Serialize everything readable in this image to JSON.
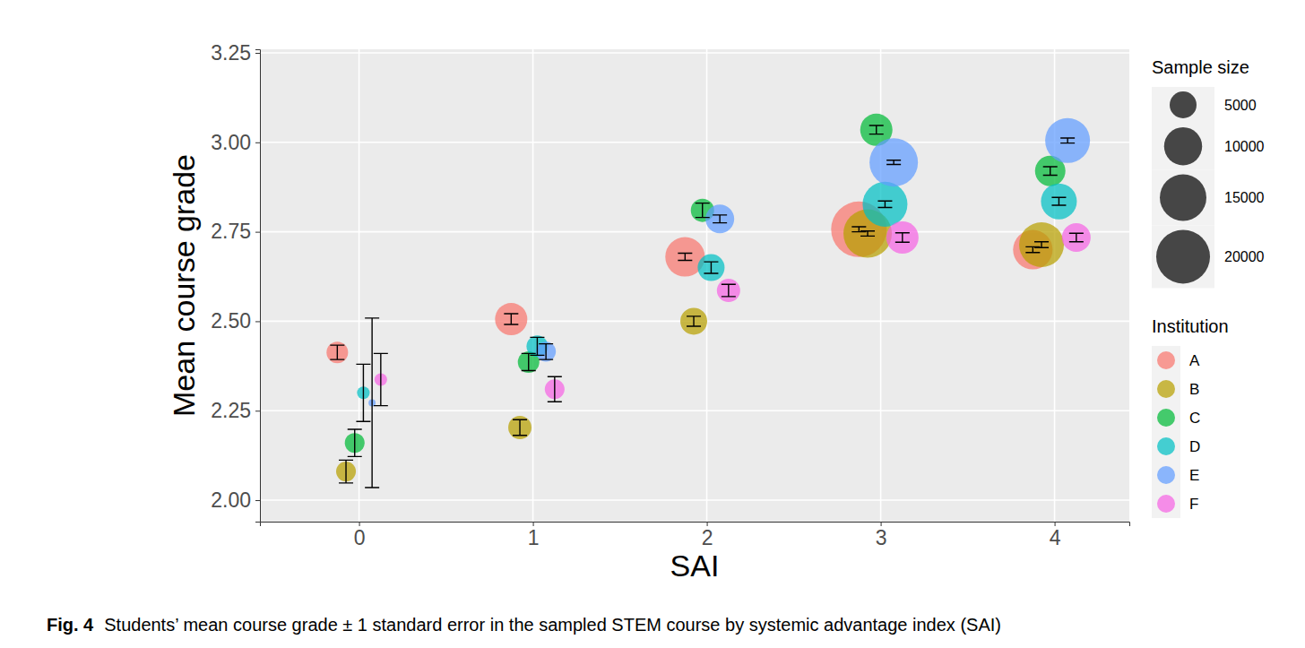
{
  "chart_data": {
    "type": "scatter",
    "marker": "bubble",
    "caption_label": "Fig. 4",
    "caption": "Students’ mean course grade ± 1 standard error in the sampled STEM course by systemic advantage index (SAI)",
    "x_label": "SAI",
    "y_label": "Mean course grade",
    "x": [
      0,
      1,
      2,
      3,
      4
    ],
    "xlim": [
      -0.57,
      4.43
    ],
    "xticks": [
      0,
      1,
      2,
      3,
      4
    ],
    "ylim": [
      1.94,
      3.26
    ],
    "yticks": [
      2.0,
      2.25,
      2.5,
      2.75,
      3.0,
      3.25
    ],
    "ytick_labels": [
      "2.00",
      "2.25",
      "2.50",
      "2.75",
      "3.00",
      "3.25"
    ],
    "grid": true,
    "legend": "right",
    "legend_title": "Institution",
    "size_legend": {
      "title": "Sample size",
      "values": [
        5000,
        10000,
        15000,
        20000
      ]
    },
    "series": [
      {
        "name": "A",
        "color": "#F8766D",
        "values": [
          2.413,
          2.506,
          2.68,
          2.757,
          2.7
        ],
        "errors": [
          0.02,
          0.015,
          0.01,
          0.007,
          0.008
        ],
        "sizes": [
          3200,
          7200,
          10800,
          21400,
          10800
        ]
      },
      {
        "name": "B",
        "color": "#B79F00",
        "values": [
          2.08,
          2.203,
          2.5,
          2.745,
          2.714
        ],
        "errors": [
          0.032,
          0.022,
          0.014,
          0.007,
          0.008
        ],
        "sizes": [
          2700,
          3750,
          5000,
          16200,
          13900
        ]
      },
      {
        "name": "C",
        "color": "#00BA38",
        "values": [
          2.16,
          2.386,
          2.81,
          3.035,
          2.92
        ],
        "errors": [
          0.038,
          0.024,
          0.02,
          0.012,
          0.012
        ],
        "sizes": [
          2700,
          3200,
          3750,
          7200,
          6400
        ]
      },
      {
        "name": "D",
        "color": "#00BFC4",
        "values": [
          2.3,
          2.43,
          2.65,
          2.827,
          2.835
        ],
        "errors": [
          0.08,
          0.025,
          0.016,
          0.009,
          0.011
        ],
        "sizes": [
          1100,
          3200,
          5000,
          13900,
          8900
        ]
      },
      {
        "name": "E",
        "color": "#619CFF",
        "values": [
          2.272,
          2.415,
          2.786,
          2.944,
          3.005
        ],
        "errors": [
          0.237,
          0.022,
          0.011,
          0.006,
          0.007
        ],
        "sizes": [
          350,
          2700,
          5700,
          16200,
          13900
        ]
      },
      {
        "name": "F",
        "color": "#F564E3",
        "values": [
          2.337,
          2.31,
          2.586,
          2.734,
          2.734
        ],
        "errors": [
          0.073,
          0.035,
          0.017,
          0.013,
          0.012
        ],
        "sizes": [
          1100,
          2700,
          3750,
          7200,
          5700
        ]
      }
    ]
  }
}
